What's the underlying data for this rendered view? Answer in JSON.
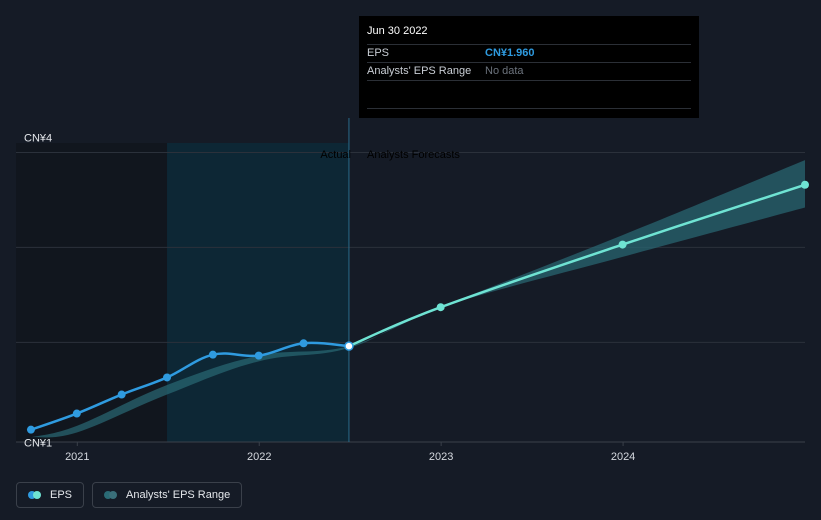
{
  "tooltip": {
    "date": "Jun 30 2022",
    "eps_label": "EPS",
    "eps_value": "CN¥1.960",
    "range_label": "Analysts' EPS Range",
    "range_value": "No data"
  },
  "regions": {
    "actual_label": "Actual",
    "forecast_label": "Analysts Forecasts"
  },
  "legend": {
    "eps_label": "EPS",
    "range_label": "Analysts' EPS Range"
  },
  "colors": {
    "eps_line": "#2f9be0",
    "forecast_line": "#6fe3d3",
    "range_band": "#2a6a75",
    "past_shade": "#11161e",
    "highlight_band": "#0d2a3a",
    "background": "#151b26"
  },
  "chart_data": {
    "type": "line",
    "title": "",
    "xlabel": "",
    "ylabel": "",
    "y_tick_labels": [
      "CN¥4",
      "CN¥1"
    ],
    "y_ticks": [
      4,
      1
    ],
    "ylim": [
      0.95,
      4.1
    ],
    "x_tick_labels": [
      "2021",
      "2022",
      "2023",
      "2024"
    ],
    "x_ticks": [
      "2021-01-01",
      "2022-01-01",
      "2023-01-01",
      "2024-01-01"
    ],
    "xlim": [
      "2020-08-31",
      "2024-12-31"
    ],
    "grid": true,
    "legend_position": "bottom-left",
    "split_date": "2022-06-30",
    "highlight_start": "2021-06-30",
    "series": [
      {
        "name": "EPS",
        "color": "#2f9be0",
        "points": [
          {
            "x": "2020-09-30",
            "y": 1.08
          },
          {
            "x": "2020-12-31",
            "y": 1.25
          },
          {
            "x": "2021-03-31",
            "y": 1.45
          },
          {
            "x": "2021-06-30",
            "y": 1.63
          },
          {
            "x": "2021-09-30",
            "y": 1.87
          },
          {
            "x": "2021-12-31",
            "y": 1.86
          },
          {
            "x": "2022-03-31",
            "y": 1.99
          },
          {
            "x": "2022-06-30",
            "y": 1.96
          }
        ]
      },
      {
        "name": "Analysts' EPS Forecast",
        "color": "#6fe3d3",
        "points": [
          {
            "x": "2022-06-30",
            "y": 1.96
          },
          {
            "x": "2022-12-31",
            "y": 2.37
          },
          {
            "x": "2023-12-31",
            "y": 3.03
          },
          {
            "x": "2024-12-31",
            "y": 3.66
          }
        ]
      }
    ],
    "range_band": {
      "name": "Analysts' EPS Range",
      "lower": [
        {
          "x": "2020-09-30",
          "y": 1.0
        },
        {
          "x": "2020-12-31",
          "y": 1.05
        },
        {
          "x": "2021-06-30",
          "y": 1.45
        },
        {
          "x": "2021-12-31",
          "y": 1.8
        },
        {
          "x": "2022-06-30",
          "y": 1.94
        },
        {
          "x": "2022-12-31",
          "y": 2.37
        },
        {
          "x": "2023-12-31",
          "y": 2.9
        },
        {
          "x": "2024-12-31",
          "y": 3.42
        }
      ],
      "upper": [
        {
          "x": "2020-09-30",
          "y": 1.0
        },
        {
          "x": "2020-12-31",
          "y": 1.12
        },
        {
          "x": "2021-06-30",
          "y": 1.55
        },
        {
          "x": "2021-12-31",
          "y": 1.86
        },
        {
          "x": "2022-06-30",
          "y": 1.96
        },
        {
          "x": "2022-12-31",
          "y": 2.37
        },
        {
          "x": "2023-12-31",
          "y": 3.13
        },
        {
          "x": "2024-12-31",
          "y": 3.92
        }
      ]
    }
  }
}
